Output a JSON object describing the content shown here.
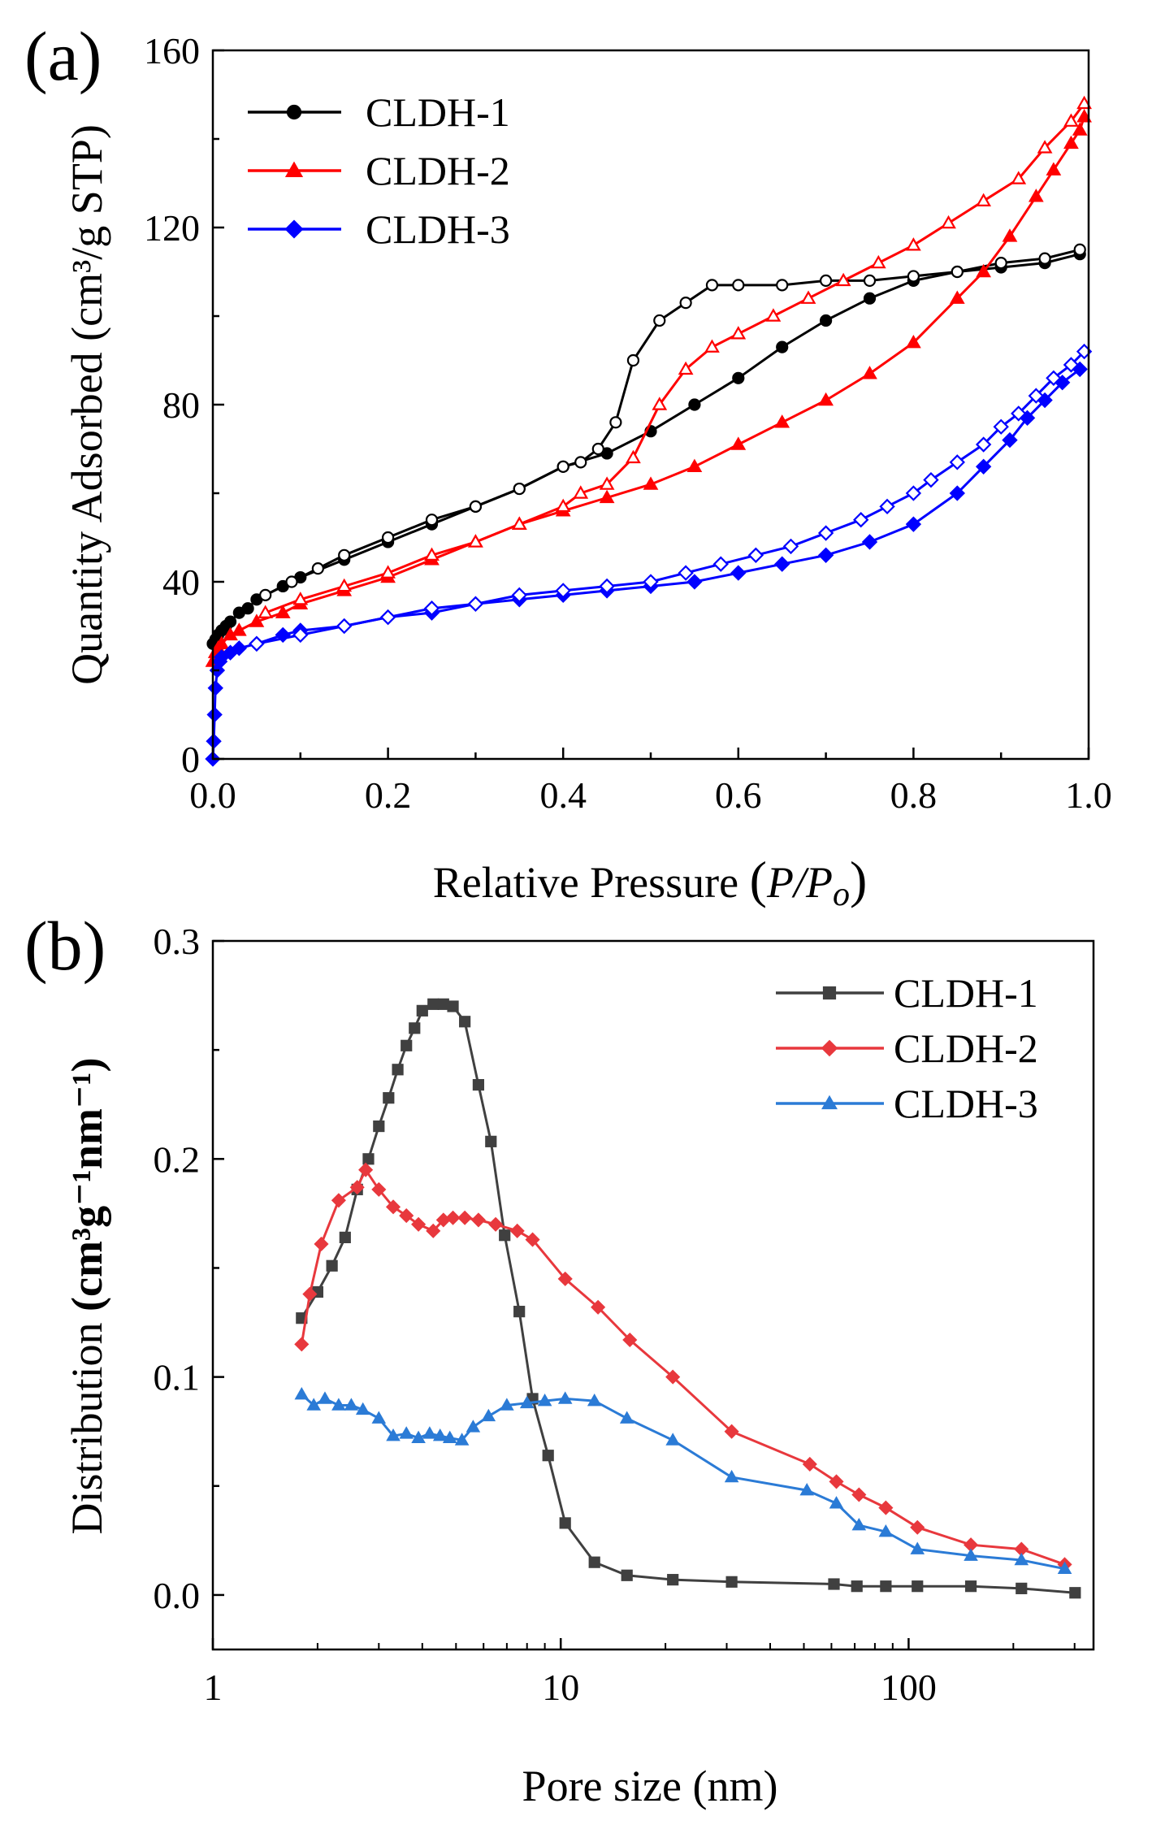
{
  "chart_data": [
    {
      "panel_label": "(a)",
      "type": "line",
      "xlabel_main": "Relative Pressure ",
      "xlabel_paren_open": "(",
      "xlabel_var": "P/P",
      "xlabel_sub": "o",
      "xlabel_paren_close": ")",
      "ylabel": "Quantity Adsorbed (cm³/g STP)",
      "xlim": [
        0,
        1.0
      ],
      "ylim": [
        0,
        160
      ],
      "xticks": [
        "0.0",
        "0.2",
        "0.4",
        "0.6",
        "0.8",
        "1.0"
      ],
      "xtick_values": [
        0,
        0.2,
        0.4,
        0.6,
        0.8,
        1.0
      ],
      "yticks": [
        "0",
        "40",
        "80",
        "120",
        "160"
      ],
      "ytick_values": [
        0,
        40,
        80,
        120,
        160
      ],
      "legend": [
        "CLDH-1",
        "CLDH-2",
        "CLDH-3"
      ],
      "series": [
        {
          "name": "CLDH-1",
          "color": "#000000",
          "marker": "circle",
          "adsorption": {
            "x": [
              0.0,
              0.003,
              0.006,
              0.01,
              0.015,
              0.02,
              0.03,
              0.04,
              0.05,
              0.08,
              0.1,
              0.15,
              0.2,
              0.25,
              0.3,
              0.35,
              0.4,
              0.45,
              0.5,
              0.55,
              0.6,
              0.65,
              0.7,
              0.75,
              0.8,
              0.85,
              0.9,
              0.95,
              0.99
            ],
            "y": [
              26,
              27,
              28,
              29,
              30,
              31,
              33,
              34,
              36,
              39,
              41,
              45,
              49,
              53,
              57,
              61,
              66,
              69,
              74,
              80,
              86,
              93,
              99,
              104,
              108,
              110,
              111,
              112,
              114
            ]
          },
          "desorption": {
            "x": [
              0.99,
              0.95,
              0.9,
              0.85,
              0.8,
              0.75,
              0.7,
              0.65,
              0.6,
              0.57,
              0.54,
              0.51,
              0.48,
              0.46,
              0.44,
              0.42,
              0.4,
              0.35,
              0.3,
              0.25,
              0.2,
              0.15,
              0.12,
              0.09,
              0.06
            ],
            "y": [
              115,
              113,
              112,
              110,
              109,
              108,
              108,
              107,
              107,
              107,
              103,
              99,
              90,
              76,
              70,
              67,
              66,
              61,
              57,
              54,
              50,
              46,
              43,
              40,
              37
            ]
          }
        },
        {
          "name": "CLDH-2",
          "color": "#ff0000",
          "marker": "triangle",
          "adsorption": {
            "x": [
              0.0,
              0.003,
              0.006,
              0.01,
              0.02,
              0.03,
              0.05,
              0.08,
              0.1,
              0.15,
              0.2,
              0.25,
              0.3,
              0.35,
              0.4,
              0.45,
              0.5,
              0.55,
              0.6,
              0.65,
              0.7,
              0.75,
              0.8,
              0.85,
              0.88,
              0.91,
              0.94,
              0.96,
              0.98,
              0.99,
              0.995
            ],
            "y": [
              22,
              24,
              25,
              26,
              28,
              29,
              31,
              33,
              35,
              38,
              41,
              45,
              49,
              53,
              56,
              59,
              62,
              66,
              71,
              76,
              81,
              87,
              94,
              104,
              110,
              118,
              127,
              133,
              139,
              142,
              145
            ]
          },
          "desorption": {
            "x": [
              0.995,
              0.98,
              0.95,
              0.92,
              0.88,
              0.84,
              0.8,
              0.76,
              0.72,
              0.68,
              0.64,
              0.6,
              0.57,
              0.54,
              0.51,
              0.48,
              0.45,
              0.42,
              0.4,
              0.35,
              0.3,
              0.25,
              0.2,
              0.15,
              0.1,
              0.06
            ],
            "y": [
              148,
              144,
              138,
              131,
              126,
              121,
              116,
              112,
              108,
              104,
              100,
              96,
              93,
              88,
              80,
              68,
              62,
              60,
              57,
              53,
              49,
              46,
              42,
              39,
              36,
              33
            ]
          }
        },
        {
          "name": "CLDH-3",
          "color": "#0000ff",
          "marker": "diamond",
          "adsorption": {
            "x": [
              0.0,
              0.001,
              0.002,
              0.003,
              0.005,
              0.008,
              0.01,
              0.02,
              0.03,
              0.05,
              0.08,
              0.1,
              0.15,
              0.2,
              0.25,
              0.3,
              0.35,
              0.4,
              0.45,
              0.5,
              0.55,
              0.6,
              0.65,
              0.7,
              0.75,
              0.8,
              0.85,
              0.88,
              0.91,
              0.93,
              0.95,
              0.97,
              0.99
            ],
            "y": [
              0,
              4,
              10,
              16,
              20,
              22,
              23,
              24,
              25,
              26,
              28,
              29,
              30,
              32,
              33,
              35,
              36,
              37,
              38,
              39,
              40,
              42,
              44,
              46,
              49,
              53,
              60,
              66,
              72,
              77,
              81,
              85,
              88
            ]
          },
          "desorption": {
            "x": [
              0.995,
              0.98,
              0.96,
              0.94,
              0.92,
              0.9,
              0.88,
              0.85,
              0.82,
              0.8,
              0.77,
              0.74,
              0.7,
              0.66,
              0.62,
              0.58,
              0.54,
              0.5,
              0.45,
              0.4,
              0.35,
              0.3,
              0.25,
              0.2,
              0.15,
              0.1,
              0.05
            ],
            "y": [
              92,
              89,
              86,
              82,
              78,
              75,
              71,
              67,
              63,
              60,
              57,
              54,
              51,
              48,
              46,
              44,
              42,
              40,
              39,
              38,
              37,
              35,
              34,
              32,
              30,
              28,
              26
            ]
          }
        }
      ]
    },
    {
      "panel_label": "(b)",
      "type": "line",
      "xscale": "log",
      "xlabel": "Pore size (nm)",
      "ylabel_prefix": "Distribution ",
      "ylabel_units": "(cm³g⁻¹nm⁻¹)",
      "xlim": [
        1,
        340
      ],
      "ylim": [
        -0.025,
        0.3
      ],
      "xticks": [
        "1",
        "10",
        "100"
      ],
      "xtick_values": [
        1,
        10,
        100
      ],
      "yticks": [
        "0.0",
        "0.1",
        "0.2",
        "0.3"
      ],
      "ytick_values": [
        0,
        0.1,
        0.2,
        0.3
      ],
      "legend": [
        "CLDH-1",
        "CLDH-2",
        "CLDH-3"
      ],
      "series": [
        {
          "name": "CLDH-1",
          "color": "#404040",
          "marker": "square",
          "x": [
            1.8,
            2.0,
            2.2,
            2.4,
            2.6,
            2.8,
            3.0,
            3.2,
            3.4,
            3.6,
            3.8,
            4.0,
            4.3,
            4.6,
            4.9,
            5.3,
            5.8,
            6.3,
            6.9,
            7.6,
            8.3,
            9.2,
            10.3,
            12.5,
            15.5,
            21,
            31,
            61,
            71,
            86,
            106,
            151,
            211,
            301
          ],
          "y": [
            0.127,
            0.139,
            0.151,
            0.164,
            0.186,
            0.2,
            0.215,
            0.228,
            0.241,
            0.252,
            0.26,
            0.268,
            0.271,
            0.271,
            0.27,
            0.263,
            0.234,
            0.208,
            0.165,
            0.13,
            0.09,
            0.064,
            0.033,
            0.015,
            0.009,
            0.007,
            0.006,
            0.005,
            0.004,
            0.004,
            0.004,
            0.004,
            0.003,
            0.001
          ]
        },
        {
          "name": "CLDH-2",
          "color": "#e8383d",
          "marker": "diamond",
          "x": [
            1.8,
            1.9,
            2.05,
            2.3,
            2.6,
            2.75,
            3.0,
            3.3,
            3.6,
            3.9,
            4.3,
            4.6,
            4.9,
            5.3,
            5.8,
            6.5,
            7.5,
            8.3,
            10.3,
            12.8,
            15.8,
            21,
            31,
            52,
            62,
            72,
            86,
            106,
            151,
            211,
            281
          ],
          "y": [
            0.115,
            0.138,
            0.161,
            0.181,
            0.187,
            0.195,
            0.186,
            0.178,
            0.174,
            0.17,
            0.167,
            0.172,
            0.173,
            0.173,
            0.172,
            0.17,
            0.167,
            0.163,
            0.145,
            0.132,
            0.117,
            0.1,
            0.075,
            0.06,
            0.052,
            0.046,
            0.04,
            0.031,
            0.023,
            0.021,
            0.014
          ]
        },
        {
          "name": "CLDH-3",
          "color": "#2b7bd6",
          "marker": "triangle",
          "x": [
            1.8,
            1.95,
            2.1,
            2.3,
            2.5,
            2.7,
            3.0,
            3.3,
            3.6,
            3.9,
            4.2,
            4.5,
            4.8,
            5.2,
            5.6,
            6.2,
            7.0,
            8.0,
            9.0,
            10.3,
            12.5,
            15.5,
            21,
            31,
            51,
            62,
            72,
            86,
            106,
            151,
            211,
            281
          ],
          "y": [
            0.092,
            0.087,
            0.09,
            0.087,
            0.087,
            0.085,
            0.081,
            0.073,
            0.074,
            0.072,
            0.074,
            0.073,
            0.072,
            0.071,
            0.077,
            0.082,
            0.087,
            0.088,
            0.089,
            0.09,
            0.089,
            0.081,
            0.071,
            0.054,
            0.048,
            0.042,
            0.032,
            0.029,
            0.021,
            0.018,
            0.016,
            0.012
          ]
        }
      ]
    }
  ]
}
